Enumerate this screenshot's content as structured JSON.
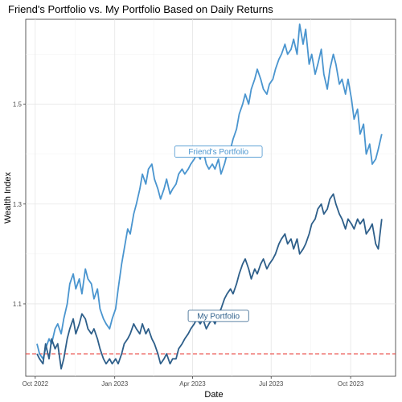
{
  "chart_data": {
    "type": "line",
    "title": "Friend's Portfolio vs. My Portfolio Based on Daily Returns",
    "xlabel": "Date",
    "ylabel": "Wealth Index",
    "xlim": [
      "2022-09-20",
      "2023-11-22"
    ],
    "ylim": [
      0.955,
      1.67
    ],
    "x_ticks": [
      {
        "date": "2022-10-01",
        "label": "Oct 2022"
      },
      {
        "date": "2023-01-01",
        "label": "Jan 2023"
      },
      {
        "date": "2023-04-01",
        "label": "Apr 2023"
      },
      {
        "date": "2023-07-01",
        "label": "Jul 2023"
      },
      {
        "date": "2023-10-01",
        "label": "Oct 2023"
      }
    ],
    "y_ticks": [
      1.1,
      1.3,
      1.5
    ],
    "reference_line": {
      "y": 1.0,
      "color": "#e8413c",
      "style": "dashed"
    },
    "grid": true,
    "series": [
      {
        "name": "Friend's Portfolio",
        "color": "#4a95cf",
        "points": [
          [
            "2022-10-03",
            1.02
          ],
          [
            "2022-10-06",
            1.0
          ],
          [
            "2022-10-10",
            0.99
          ],
          [
            "2022-10-13",
            1.01
          ],
          [
            "2022-10-17",
            1.03
          ],
          [
            "2022-10-20",
            1.02
          ],
          [
            "2022-10-24",
            1.05
          ],
          [
            "2022-10-27",
            1.06
          ],
          [
            "2022-10-31",
            1.04
          ],
          [
            "2022-11-03",
            1.07
          ],
          [
            "2022-11-07",
            1.1
          ],
          [
            "2022-11-10",
            1.14
          ],
          [
            "2022-11-14",
            1.16
          ],
          [
            "2022-11-17",
            1.13
          ],
          [
            "2022-11-21",
            1.15
          ],
          [
            "2022-11-24",
            1.12
          ],
          [
            "2022-11-28",
            1.17
          ],
          [
            "2022-12-01",
            1.15
          ],
          [
            "2022-12-05",
            1.14
          ],
          [
            "2022-12-08",
            1.11
          ],
          [
            "2022-12-12",
            1.13
          ],
          [
            "2022-12-15",
            1.09
          ],
          [
            "2022-12-19",
            1.07
          ],
          [
            "2022-12-22",
            1.06
          ],
          [
            "2022-12-26",
            1.05
          ],
          [
            "2022-12-29",
            1.07
          ],
          [
            "2023-01-02",
            1.09
          ],
          [
            "2023-01-05",
            1.13
          ],
          [
            "2023-01-09",
            1.18
          ],
          [
            "2023-01-12",
            1.21
          ],
          [
            "2023-01-16",
            1.25
          ],
          [
            "2023-01-19",
            1.24
          ],
          [
            "2023-01-23",
            1.28
          ],
          [
            "2023-01-26",
            1.3
          ],
          [
            "2023-01-30",
            1.33
          ],
          [
            "2023-02-02",
            1.36
          ],
          [
            "2023-02-06",
            1.34
          ],
          [
            "2023-02-09",
            1.37
          ],
          [
            "2023-02-13",
            1.38
          ],
          [
            "2023-02-16",
            1.35
          ],
          [
            "2023-02-20",
            1.33
          ],
          [
            "2023-02-23",
            1.31
          ],
          [
            "2023-02-27",
            1.33
          ],
          [
            "2023-03-02",
            1.35
          ],
          [
            "2023-03-06",
            1.32
          ],
          [
            "2023-03-09",
            1.33
          ],
          [
            "2023-03-13",
            1.34
          ],
          [
            "2023-03-16",
            1.36
          ],
          [
            "2023-03-20",
            1.37
          ],
          [
            "2023-03-23",
            1.36
          ],
          [
            "2023-03-27",
            1.37
          ],
          [
            "2023-03-30",
            1.38
          ],
          [
            "2023-04-03",
            1.39
          ],
          [
            "2023-04-06",
            1.4
          ],
          [
            "2023-04-10",
            1.39
          ],
          [
            "2023-04-13",
            1.41
          ],
          [
            "2023-04-17",
            1.38
          ],
          [
            "2023-04-20",
            1.37
          ],
          [
            "2023-04-24",
            1.38
          ],
          [
            "2023-04-27",
            1.37
          ],
          [
            "2023-05-01",
            1.39
          ],
          [
            "2023-05-04",
            1.36
          ],
          [
            "2023-05-08",
            1.38
          ],
          [
            "2023-05-11",
            1.4
          ],
          [
            "2023-05-15",
            1.41
          ],
          [
            "2023-05-18",
            1.43
          ],
          [
            "2023-05-22",
            1.45
          ],
          [
            "2023-05-25",
            1.48
          ],
          [
            "2023-05-29",
            1.5
          ],
          [
            "2023-06-01",
            1.52
          ],
          [
            "2023-06-05",
            1.5
          ],
          [
            "2023-06-08",
            1.53
          ],
          [
            "2023-06-12",
            1.55
          ],
          [
            "2023-06-15",
            1.57
          ],
          [
            "2023-06-19",
            1.55
          ],
          [
            "2023-06-22",
            1.53
          ],
          [
            "2023-06-26",
            1.52
          ],
          [
            "2023-06-29",
            1.54
          ],
          [
            "2023-07-03",
            1.55
          ],
          [
            "2023-07-06",
            1.57
          ],
          [
            "2023-07-10",
            1.59
          ],
          [
            "2023-07-13",
            1.6
          ],
          [
            "2023-07-17",
            1.62
          ],
          [
            "2023-07-20",
            1.6
          ],
          [
            "2023-07-24",
            1.61
          ],
          [
            "2023-07-27",
            1.63
          ],
          [
            "2023-07-31",
            1.6
          ],
          [
            "2023-08-03",
            1.66
          ],
          [
            "2023-08-07",
            1.62
          ],
          [
            "2023-08-10",
            1.65
          ],
          [
            "2023-08-14",
            1.58
          ],
          [
            "2023-08-17",
            1.6
          ],
          [
            "2023-08-21",
            1.56
          ],
          [
            "2023-08-24",
            1.58
          ],
          [
            "2023-08-28",
            1.61
          ],
          [
            "2023-08-31",
            1.56
          ],
          [
            "2023-09-04",
            1.53
          ],
          [
            "2023-09-07",
            1.57
          ],
          [
            "2023-09-11",
            1.6
          ],
          [
            "2023-09-14",
            1.58
          ],
          [
            "2023-09-18",
            1.54
          ],
          [
            "2023-09-21",
            1.55
          ],
          [
            "2023-09-25",
            1.52
          ],
          [
            "2023-09-28",
            1.55
          ],
          [
            "2023-10-02",
            1.51
          ],
          [
            "2023-10-05",
            1.47
          ],
          [
            "2023-10-09",
            1.49
          ],
          [
            "2023-10-12",
            1.44
          ],
          [
            "2023-10-16",
            1.46
          ],
          [
            "2023-10-19",
            1.4
          ],
          [
            "2023-10-23",
            1.42
          ],
          [
            "2023-10-26",
            1.38
          ],
          [
            "2023-10-30",
            1.39
          ],
          [
            "2023-11-02",
            1.41
          ],
          [
            "2023-11-06",
            1.44
          ]
        ]
      },
      {
        "name": "My Portfolio",
        "color": "#2e5f8a",
        "points": [
          [
            "2022-10-03",
            1.0
          ],
          [
            "2022-10-06",
            0.99
          ],
          [
            "2022-10-10",
            0.98
          ],
          [
            "2022-10-13",
            1.02
          ],
          [
            "2022-10-17",
            0.99
          ],
          [
            "2022-10-20",
            1.03
          ],
          [
            "2022-10-24",
            1.01
          ],
          [
            "2022-10-27",
            1.02
          ],
          [
            "2022-10-31",
            0.97
          ],
          [
            "2022-11-03",
            0.99
          ],
          [
            "2022-11-07",
            1.03
          ],
          [
            "2022-11-10",
            1.05
          ],
          [
            "2022-11-14",
            1.07
          ],
          [
            "2022-11-17",
            1.04
          ],
          [
            "2022-11-21",
            1.06
          ],
          [
            "2022-11-24",
            1.08
          ],
          [
            "2022-11-28",
            1.07
          ],
          [
            "2022-12-01",
            1.05
          ],
          [
            "2022-12-05",
            1.04
          ],
          [
            "2022-12-08",
            1.05
          ],
          [
            "2022-12-12",
            1.03
          ],
          [
            "2022-12-15",
            1.01
          ],
          [
            "2022-12-19",
            0.99
          ],
          [
            "2022-12-22",
            0.98
          ],
          [
            "2022-12-26",
            0.99
          ],
          [
            "2022-12-29",
            0.98
          ],
          [
            "2023-01-02",
            0.99
          ],
          [
            "2023-01-05",
            0.98
          ],
          [
            "2023-01-09",
            1.0
          ],
          [
            "2023-01-12",
            1.02
          ],
          [
            "2023-01-16",
            1.03
          ],
          [
            "2023-01-19",
            1.04
          ],
          [
            "2023-01-23",
            1.06
          ],
          [
            "2023-01-26",
            1.05
          ],
          [
            "2023-01-30",
            1.04
          ],
          [
            "2023-02-02",
            1.06
          ],
          [
            "2023-02-06",
            1.04
          ],
          [
            "2023-02-09",
            1.05
          ],
          [
            "2023-02-13",
            1.03
          ],
          [
            "2023-02-16",
            1.02
          ],
          [
            "2023-02-20",
            1.0
          ],
          [
            "2023-02-23",
            0.98
          ],
          [
            "2023-02-27",
            0.99
          ],
          [
            "2023-03-02",
            1.0
          ],
          [
            "2023-03-06",
            0.98
          ],
          [
            "2023-03-09",
            0.99
          ],
          [
            "2023-03-13",
            0.99
          ],
          [
            "2023-03-16",
            1.01
          ],
          [
            "2023-03-20",
            1.02
          ],
          [
            "2023-03-23",
            1.03
          ],
          [
            "2023-03-27",
            1.04
          ],
          [
            "2023-03-30",
            1.05
          ],
          [
            "2023-04-03",
            1.06
          ],
          [
            "2023-04-06",
            1.07
          ],
          [
            "2023-04-10",
            1.06
          ],
          [
            "2023-04-13",
            1.07
          ],
          [
            "2023-04-17",
            1.05
          ],
          [
            "2023-04-20",
            1.06
          ],
          [
            "2023-04-24",
            1.07
          ],
          [
            "2023-04-27",
            1.06
          ],
          [
            "2023-05-01",
            1.08
          ],
          [
            "2023-05-04",
            1.09
          ],
          [
            "2023-05-08",
            1.11
          ],
          [
            "2023-05-11",
            1.12
          ],
          [
            "2023-05-15",
            1.13
          ],
          [
            "2023-05-18",
            1.12
          ],
          [
            "2023-05-22",
            1.14
          ],
          [
            "2023-05-25",
            1.16
          ],
          [
            "2023-05-29",
            1.18
          ],
          [
            "2023-06-01",
            1.19
          ],
          [
            "2023-06-05",
            1.17
          ],
          [
            "2023-06-08",
            1.15
          ],
          [
            "2023-06-12",
            1.17
          ],
          [
            "2023-06-15",
            1.16
          ],
          [
            "2023-06-19",
            1.18
          ],
          [
            "2023-06-22",
            1.19
          ],
          [
            "2023-06-26",
            1.17
          ],
          [
            "2023-06-29",
            1.18
          ],
          [
            "2023-07-03",
            1.19
          ],
          [
            "2023-07-06",
            1.2
          ],
          [
            "2023-07-10",
            1.22
          ],
          [
            "2023-07-13",
            1.23
          ],
          [
            "2023-07-17",
            1.24
          ],
          [
            "2023-07-20",
            1.22
          ],
          [
            "2023-07-24",
            1.23
          ],
          [
            "2023-07-27",
            1.21
          ],
          [
            "2023-07-31",
            1.23
          ],
          [
            "2023-08-03",
            1.2
          ],
          [
            "2023-08-07",
            1.21
          ],
          [
            "2023-08-10",
            1.22
          ],
          [
            "2023-08-14",
            1.24
          ],
          [
            "2023-08-17",
            1.26
          ],
          [
            "2023-08-21",
            1.27
          ],
          [
            "2023-08-24",
            1.29
          ],
          [
            "2023-08-28",
            1.3
          ],
          [
            "2023-08-31",
            1.28
          ],
          [
            "2023-09-04",
            1.29
          ],
          [
            "2023-09-07",
            1.31
          ],
          [
            "2023-09-11",
            1.32
          ],
          [
            "2023-09-14",
            1.3
          ],
          [
            "2023-09-18",
            1.28
          ],
          [
            "2023-09-21",
            1.27
          ],
          [
            "2023-09-25",
            1.25
          ],
          [
            "2023-09-28",
            1.27
          ],
          [
            "2023-10-02",
            1.26
          ],
          [
            "2023-10-05",
            1.25
          ],
          [
            "2023-10-09",
            1.27
          ],
          [
            "2023-10-12",
            1.26
          ],
          [
            "2023-10-16",
            1.27
          ],
          [
            "2023-10-19",
            1.24
          ],
          [
            "2023-10-23",
            1.25
          ],
          [
            "2023-10-26",
            1.26
          ],
          [
            "2023-10-30",
            1.22
          ],
          [
            "2023-11-02",
            1.21
          ],
          [
            "2023-11-06",
            1.27
          ]
        ]
      }
    ],
    "annotations": [
      {
        "text": "Friend's Portfolio",
        "x": "2023-05-01",
        "y": 1.405,
        "color": "#4a95cf"
      },
      {
        "text": "My Portfolio",
        "x": "2023-05-01",
        "y": 1.076,
        "color": "#2e5f8a"
      }
    ]
  }
}
